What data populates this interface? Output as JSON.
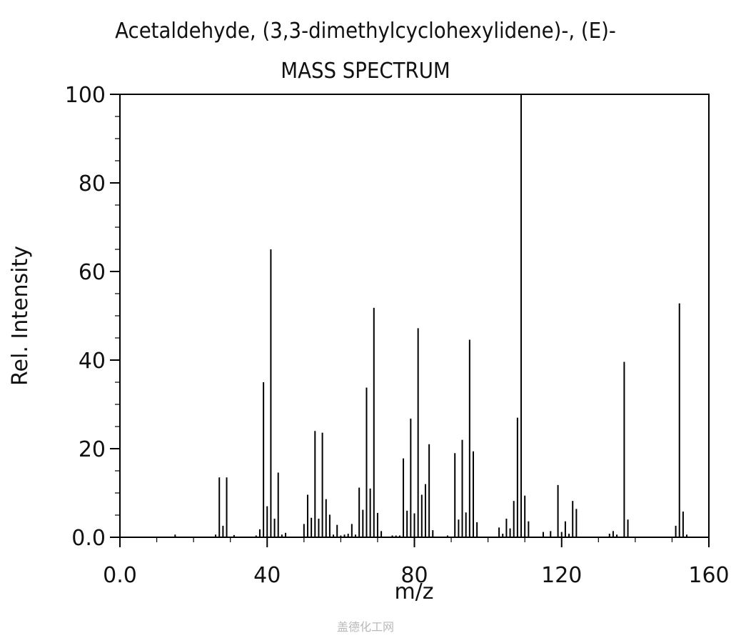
{
  "watermark": "盖德化工网",
  "chart_data": {
    "type": "bar",
    "title": "Acetaldehyde, (3,3-dimethylcyclohexylidene)-, (E)-",
    "subtitle": "MASS SPECTRUM",
    "xlabel": "m/z",
    "ylabel": "Rel. Intensity",
    "xlim": [
      0,
      160
    ],
    "ylim": [
      0,
      100
    ],
    "x_ticks": [
      "0.0",
      "40",
      "80",
      "120",
      "160"
    ],
    "y_ticks": [
      "0.0",
      "20",
      "40",
      "60",
      "80",
      "100"
    ],
    "grid": false,
    "color": "#000000",
    "peaks": [
      {
        "mz": 15,
        "rel": 0.6
      },
      {
        "mz": 26,
        "rel": 0.6
      },
      {
        "mz": 27,
        "rel": 13.5
      },
      {
        "mz": 28,
        "rel": 2.6
      },
      {
        "mz": 29,
        "rel": 13.5
      },
      {
        "mz": 31,
        "rel": 0.5
      },
      {
        "mz": 37,
        "rel": 0.4
      },
      {
        "mz": 38,
        "rel": 1.8
      },
      {
        "mz": 39,
        "rel": 35.0
      },
      {
        "mz": 40,
        "rel": 7.0
      },
      {
        "mz": 41,
        "rel": 65.0
      },
      {
        "mz": 42,
        "rel": 4.2
      },
      {
        "mz": 43,
        "rel": 14.6
      },
      {
        "mz": 44,
        "rel": 0.6
      },
      {
        "mz": 45,
        "rel": 1.0
      },
      {
        "mz": 50,
        "rel": 3.0
      },
      {
        "mz": 51,
        "rel": 9.6
      },
      {
        "mz": 52,
        "rel": 4.4
      },
      {
        "mz": 53,
        "rel": 24.0
      },
      {
        "mz": 54,
        "rel": 4.2
      },
      {
        "mz": 55,
        "rel": 23.6
      },
      {
        "mz": 56,
        "rel": 8.6
      },
      {
        "mz": 57,
        "rel": 5.1
      },
      {
        "mz": 58,
        "rel": 0.6
      },
      {
        "mz": 59,
        "rel": 2.8
      },
      {
        "mz": 60,
        "rel": 0.4
      },
      {
        "mz": 61,
        "rel": 0.6
      },
      {
        "mz": 62,
        "rel": 0.8
      },
      {
        "mz": 63,
        "rel": 3.0
      },
      {
        "mz": 64,
        "rel": 0.6
      },
      {
        "mz": 65,
        "rel": 11.2
      },
      {
        "mz": 66,
        "rel": 6.2
      },
      {
        "mz": 67,
        "rel": 33.8
      },
      {
        "mz": 68,
        "rel": 11.0
      },
      {
        "mz": 69,
        "rel": 51.8
      },
      {
        "mz": 70,
        "rel": 5.5
      },
      {
        "mz": 71,
        "rel": 1.4
      },
      {
        "mz": 74,
        "rel": 0.4
      },
      {
        "mz": 75,
        "rel": 0.4
      },
      {
        "mz": 76,
        "rel": 0.4
      },
      {
        "mz": 77,
        "rel": 17.8
      },
      {
        "mz": 78,
        "rel": 6.0
      },
      {
        "mz": 79,
        "rel": 26.8
      },
      {
        "mz": 80,
        "rel": 5.4
      },
      {
        "mz": 81,
        "rel": 47.2
      },
      {
        "mz": 82,
        "rel": 9.6
      },
      {
        "mz": 83,
        "rel": 12.0
      },
      {
        "mz": 84,
        "rel": 21.0
      },
      {
        "mz": 85,
        "rel": 1.6
      },
      {
        "mz": 89,
        "rel": 0.4
      },
      {
        "mz": 91,
        "rel": 19.0
      },
      {
        "mz": 92,
        "rel": 4.0
      },
      {
        "mz": 93,
        "rel": 22.0
      },
      {
        "mz": 94,
        "rel": 5.6
      },
      {
        "mz": 95,
        "rel": 44.6
      },
      {
        "mz": 96,
        "rel": 19.4
      },
      {
        "mz": 97,
        "rel": 3.4
      },
      {
        "mz": 103,
        "rel": 2.2
      },
      {
        "mz": 104,
        "rel": 0.8
      },
      {
        "mz": 105,
        "rel": 4.2
      },
      {
        "mz": 106,
        "rel": 2.0
      },
      {
        "mz": 107,
        "rel": 8.2
      },
      {
        "mz": 108,
        "rel": 27.0
      },
      {
        "mz": 109,
        "rel": 100.0
      },
      {
        "mz": 110,
        "rel": 9.4
      },
      {
        "mz": 111,
        "rel": 3.6
      },
      {
        "mz": 115,
        "rel": 1.2
      },
      {
        "mz": 117,
        "rel": 1.4
      },
      {
        "mz": 119,
        "rel": 11.8
      },
      {
        "mz": 120,
        "rel": 1.2
      },
      {
        "mz": 121,
        "rel": 3.6
      },
      {
        "mz": 122,
        "rel": 0.8
      },
      {
        "mz": 123,
        "rel": 8.2
      },
      {
        "mz": 124,
        "rel": 6.4
      },
      {
        "mz": 133,
        "rel": 0.8
      },
      {
        "mz": 134,
        "rel": 1.4
      },
      {
        "mz": 135,
        "rel": 0.6
      },
      {
        "mz": 137,
        "rel": 39.6
      },
      {
        "mz": 138,
        "rel": 4.0
      },
      {
        "mz": 151,
        "rel": 2.6
      },
      {
        "mz": 152,
        "rel": 52.8
      },
      {
        "mz": 153,
        "rel": 5.8
      },
      {
        "mz": 154,
        "rel": 0.6
      }
    ]
  }
}
